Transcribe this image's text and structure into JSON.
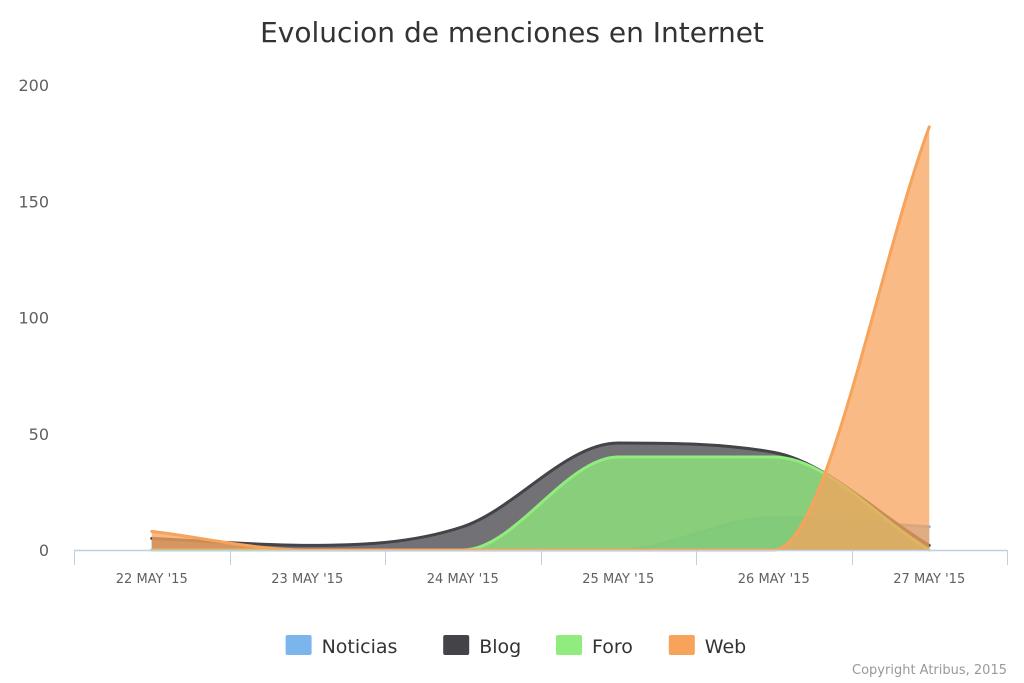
{
  "chart_data": {
    "type": "area",
    "title": "Evolucion de menciones en Internet",
    "categories": [
      "22 MAY '15",
      "23 MAY '15",
      "24 MAY '15",
      "25 MAY '15",
      "26 MAY '15",
      "27 MAY '15"
    ],
    "ylim": [
      0,
      200
    ],
    "yticks": [
      "0",
      "50",
      "100",
      "150",
      "200"
    ],
    "grid": false,
    "legend_position": "bottom",
    "series": [
      {
        "name": "Noticias",
        "color": "#7cb5ec",
        "values": [
          0,
          0,
          0,
          0,
          14,
          10
        ]
      },
      {
        "name": "Blog",
        "color": "#434348",
        "values": [
          5,
          2,
          10,
          46,
          42,
          2
        ]
      },
      {
        "name": "Foro",
        "color": "#90ed7d",
        "values": [
          0,
          0,
          0,
          40,
          40,
          0
        ]
      },
      {
        "name": "Web",
        "color": "#f7a35c",
        "values": [
          8,
          0,
          0,
          0,
          0,
          182
        ]
      }
    ]
  },
  "credits": "Copyright Atribus, 2015"
}
